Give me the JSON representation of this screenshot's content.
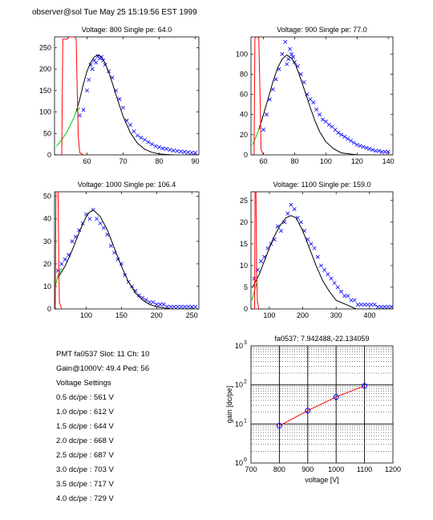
{
  "header": "observer@sol  Tue May 25 15:19:56 EST 1999",
  "colors": {
    "data_marker": "#0000ff",
    "fit_line": "#000000",
    "pedestal_line": "#ff0000",
    "low_fit_line": "#00cc00",
    "gain_line": "#ff0000",
    "gain_marker": "#0000ff"
  },
  "info": {
    "pmt_line": "PMT fa0537 Slot: 11 Ch: 10",
    "gain_line": "Gain@1000V: 49.4 Ped: 56",
    "settings_title": "Voltage Settings",
    "settings": [
      "0.5 dc/pe : 561 V",
      "1.0 dc/pe : 612 V",
      "1.5 dc/pe : 644 V",
      "2.0 dc/pe : 668 V",
      "2.5 dc/pe : 687 V",
      "3.0 dc/pe : 703 V",
      "3.5 dc/pe : 717 V",
      "4.0 dc/pe : 729 V"
    ]
  },
  "chart_data": [
    {
      "type": "scatter",
      "title": "Voltage: 800 Single pe: 64.0",
      "xlim": [
        51,
        91
      ],
      "ylim": [
        0,
        275
      ],
      "xticks": [
        60,
        70,
        80,
        90
      ],
      "yticks": [
        0,
        50,
        100,
        150,
        200,
        250
      ],
      "series": [
        {
          "kind": "markers",
          "x": [
            58,
            59,
            60,
            60.5,
            61,
            61.5,
            62,
            62.5,
            63,
            63.5,
            64,
            64.5,
            65,
            66,
            67,
            68,
            69,
            70,
            71,
            72,
            73,
            74,
            75,
            76,
            77,
            78,
            79,
            80,
            81,
            82,
            83,
            84,
            85,
            86,
            87,
            88,
            89,
            90
          ],
          "y": [
            92,
            105,
            150,
            175,
            210,
            200,
            220,
            215,
            230,
            225,
            228,
            220,
            210,
            195,
            180,
            150,
            130,
            110,
            80,
            70,
            55,
            45,
            40,
            35,
            30,
            25,
            20,
            18,
            15,
            14,
            12,
            10,
            9,
            8,
            7,
            6,
            5,
            5
          ]
        },
        {
          "kind": "fit",
          "x": [
            57,
            58,
            59,
            60,
            61,
            62,
            63,
            64,
            65,
            66,
            67,
            68,
            69,
            70,
            72,
            74,
            76,
            78,
            80,
            82,
            84,
            86,
            88,
            90
          ],
          "y": [
            100,
            130,
            165,
            195,
            215,
            228,
            233,
            228,
            214,
            193,
            168,
            141,
            115,
            90,
            52,
            27,
            13,
            6,
            2,
            1,
            0,
            0,
            0,
            0
          ]
        },
        {
          "kind": "low_fit",
          "x": [
            51.5,
            53,
            54.5,
            56,
            57,
            58
          ],
          "y": [
            20,
            35,
            55,
            80,
            100,
            110
          ]
        },
        {
          "kind": "pedestal",
          "x": [
            53,
            53.3,
            54,
            54.5,
            55,
            55.5,
            56,
            56.5,
            57,
            57.3,
            57.6,
            58,
            59
          ],
          "y": [
            0,
            270,
            270,
            270,
            275,
            275,
            275,
            275,
            270,
            150,
            40,
            5,
            0
          ]
        }
      ]
    },
    {
      "type": "scatter",
      "title": "Voltage: 900 Single pe: 77.0",
      "xlim": [
        52,
        143
      ],
      "ylim": [
        0,
        117
      ],
      "xticks": [
        60,
        80,
        100,
        120,
        140
      ],
      "yticks": [
        0,
        20,
        40,
        60,
        80,
        100
      ],
      "series": [
        {
          "kind": "markers",
          "x": [
            60,
            62,
            64,
            66,
            68,
            70,
            72,
            74,
            75,
            76,
            77,
            78,
            79,
            80,
            82,
            84,
            86,
            88,
            90,
            92,
            94,
            96,
            98,
            100,
            102,
            104,
            106,
            108,
            110,
            112,
            114,
            116,
            118,
            120,
            122,
            124,
            126,
            128,
            130,
            132,
            134,
            136,
            138,
            140
          ],
          "y": [
            25,
            40,
            55,
            65,
            75,
            85,
            100,
            112,
            90,
            95,
            105,
            100,
            97,
            92,
            88,
            80,
            72,
            60,
            55,
            52,
            45,
            40,
            35,
            33,
            30,
            28,
            25,
            22,
            20,
            18,
            16,
            14,
            12,
            10,
            9,
            8,
            7,
            6,
            5,
            4,
            4,
            3,
            3,
            3
          ]
        },
        {
          "kind": "fit",
          "x": [
            57,
            60,
            63,
            66,
            69,
            72,
            75,
            78,
            81,
            84,
            87,
            90,
            93,
            96,
            100,
            105,
            110,
            115,
            120,
            130,
            140
          ],
          "y": [
            25,
            40,
            56,
            72,
            86,
            95,
            99,
            96,
            88,
            75,
            61,
            47,
            34,
            23,
            13,
            6,
            2,
            1,
            0,
            0,
            0
          ]
        },
        {
          "kind": "low_fit",
          "x": [
            53,
            55,
            57
          ],
          "y": [
            10,
            17,
            25
          ]
        },
        {
          "kind": "pedestal",
          "x": [
            54,
            54.5,
            55,
            56,
            57,
            57.8,
            58.5,
            60
          ],
          "y": [
            0,
            115,
            117,
            117,
            116,
            60,
            5,
            0
          ]
        }
      ]
    },
    {
      "type": "scatter",
      "title": "Voltage: 1000 Single pe: 106.4",
      "xlim": [
        55,
        260
      ],
      "ylim": [
        0,
        52
      ],
      "xticks": [
        100,
        150,
        200,
        250
      ],
      "yticks": [
        0,
        10,
        20,
        30,
        40,
        50
      ],
      "series": [
        {
          "kind": "markers",
          "x": [
            60,
            65,
            70,
            75,
            80,
            85,
            90,
            95,
            100,
            105,
            110,
            115,
            120,
            125,
            130,
            135,
            140,
            145,
            150,
            155,
            160,
            165,
            170,
            175,
            180,
            185,
            190,
            195,
            200,
            205,
            210,
            215,
            220,
            225,
            230,
            235,
            240,
            245,
            250,
            255
          ],
          "y": [
            17,
            20,
            22,
            24,
            30,
            32,
            35,
            38,
            42,
            40,
            44,
            40,
            38,
            36,
            33,
            28,
            25,
            22,
            20,
            15,
            12,
            10,
            8,
            6,
            5,
            4,
            3,
            3,
            2,
            2,
            2,
            1,
            1,
            1,
            1,
            1,
            1,
            1,
            1,
            1
          ]
        },
        {
          "kind": "fit",
          "x": [
            60,
            70,
            80,
            90,
            100,
            105,
            110,
            120,
            130,
            140,
            150,
            160,
            170,
            180,
            190,
            200,
            220,
            240,
            255
          ],
          "y": [
            14,
            19,
            26,
            34,
            41,
            43,
            44,
            41,
            35,
            27,
            19,
            12,
            7,
            4,
            2,
            1,
            0,
            0,
            0
          ]
        },
        {
          "kind": "low_fit",
          "x": [
            56,
            60,
            65
          ],
          "y": [
            10,
            15,
            18
          ]
        },
        {
          "kind": "pedestal",
          "x": [
            56,
            57,
            58,
            59,
            60,
            61,
            62,
            65
          ],
          "y": [
            0,
            52,
            52,
            52,
            52,
            20,
            3,
            0
          ]
        }
      ]
    },
    {
      "type": "scatter",
      "title": "Voltage: 1100 Single pe: 159.0",
      "xlim": [
        45,
        470
      ],
      "ylim": [
        0,
        27
      ],
      "xticks": [
        100,
        200,
        300,
        400
      ],
      "yticks": [
        0,
        5,
        10,
        15,
        20,
        25
      ],
      "series": [
        {
          "kind": "markers",
          "x": [
            55,
            65,
            75,
            85,
            95,
            105,
            115,
            125,
            135,
            145,
            155,
            165,
            175,
            185,
            195,
            205,
            215,
            225,
            235,
            245,
            255,
            265,
            275,
            285,
            295,
            305,
            315,
            325,
            335,
            345,
            355,
            365,
            375,
            385,
            395,
            405,
            415,
            425,
            435,
            445,
            455,
            465
          ],
          "y": [
            7,
            9,
            11,
            12,
            14,
            15,
            16,
            19,
            18,
            20,
            22,
            24,
            23,
            21,
            20,
            18,
            16,
            15,
            14,
            12,
            10,
            9,
            8,
            7,
            6,
            5,
            4,
            3,
            3,
            2,
            2,
            1,
            1,
            1,
            1,
            1,
            1,
            0.5,
            0.5,
            0.5,
            0.5,
            0.5
          ]
        },
        {
          "kind": "fit",
          "x": [
            50,
            70,
            90,
            110,
            130,
            150,
            165,
            180,
            200,
            220,
            240,
            260,
            280,
            300,
            330,
            360,
            400,
            450,
            470
          ],
          "y": [
            5,
            8,
            12,
            16,
            19,
            21,
            21.5,
            21,
            18,
            14,
            10,
            6.5,
            4,
            2,
            1,
            0,
            0,
            0,
            0
          ]
        },
        {
          "kind": "low_fit",
          "x": [
            48,
            55,
            62
          ],
          "y": [
            2,
            4,
            6
          ]
        },
        {
          "kind": "pedestal",
          "x": [
            56,
            57,
            58,
            59,
            60,
            62,
            64,
            68
          ],
          "y": [
            0,
            27,
            27,
            27,
            27,
            8,
            2,
            0
          ]
        }
      ]
    },
    {
      "type": "line",
      "title": "fa0537: 7.942488,-22.134059",
      "xlabel": "voltage [V]",
      "ylabel": "gain [dc/pe]",
      "xlim": [
        700,
        1200
      ],
      "ylim": [
        1,
        1000
      ],
      "yscale": "log",
      "grid": true,
      "xticks": [
        700,
        800,
        900,
        1000,
        1100,
        1200
      ],
      "ytick_labels": [
        "10",
        "10",
        "10",
        "10"
      ],
      "ytick_exponents": [
        "0",
        "1",
        "2",
        "3"
      ],
      "series": [
        {
          "kind": "gain_fit",
          "x": [
            800,
            900,
            1000,
            1100
          ],
          "y": [
            9,
            22,
            49,
            95
          ]
        },
        {
          "kind": "gain_points",
          "x": [
            800,
            900,
            1000,
            1100
          ],
          "y": [
            9,
            22,
            49,
            95
          ]
        }
      ]
    }
  ]
}
